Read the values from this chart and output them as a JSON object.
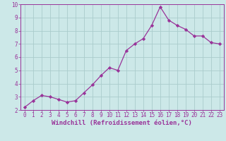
{
  "x": [
    0,
    1,
    2,
    3,
    4,
    5,
    6,
    7,
    8,
    9,
    10,
    11,
    12,
    13,
    14,
    15,
    16,
    17,
    18,
    19,
    20,
    21,
    22,
    23
  ],
  "y": [
    2.2,
    2.7,
    3.1,
    3.0,
    2.8,
    2.6,
    2.7,
    3.3,
    3.9,
    4.6,
    5.2,
    5.0,
    6.5,
    7.0,
    7.4,
    8.4,
    9.8,
    8.8,
    8.4,
    8.1,
    7.6,
    7.6,
    7.1,
    7.0
  ],
  "line_color": "#993399",
  "marker": "D",
  "marker_size": 2.2,
  "bg_color": "#cce8e8",
  "grid_color": "#aacccc",
  "xlabel": "Windchill (Refroidissement éolien,°C)",
  "xlabel_color": "#993399",
  "tick_color": "#993399",
  "spine_color": "#993399",
  "xlim_min": -0.5,
  "xlim_max": 23.5,
  "ylim_min": 2,
  "ylim_max": 10,
  "yticks": [
    2,
    3,
    4,
    5,
    6,
    7,
    8,
    9,
    10
  ],
  "xticks": [
    0,
    1,
    2,
    3,
    4,
    5,
    6,
    7,
    8,
    9,
    10,
    11,
    12,
    13,
    14,
    15,
    16,
    17,
    18,
    19,
    20,
    21,
    22,
    23
  ],
  "tick_fontsize": 5.5,
  "xlabel_fontsize": 6.5,
  "linewidth": 0.9
}
